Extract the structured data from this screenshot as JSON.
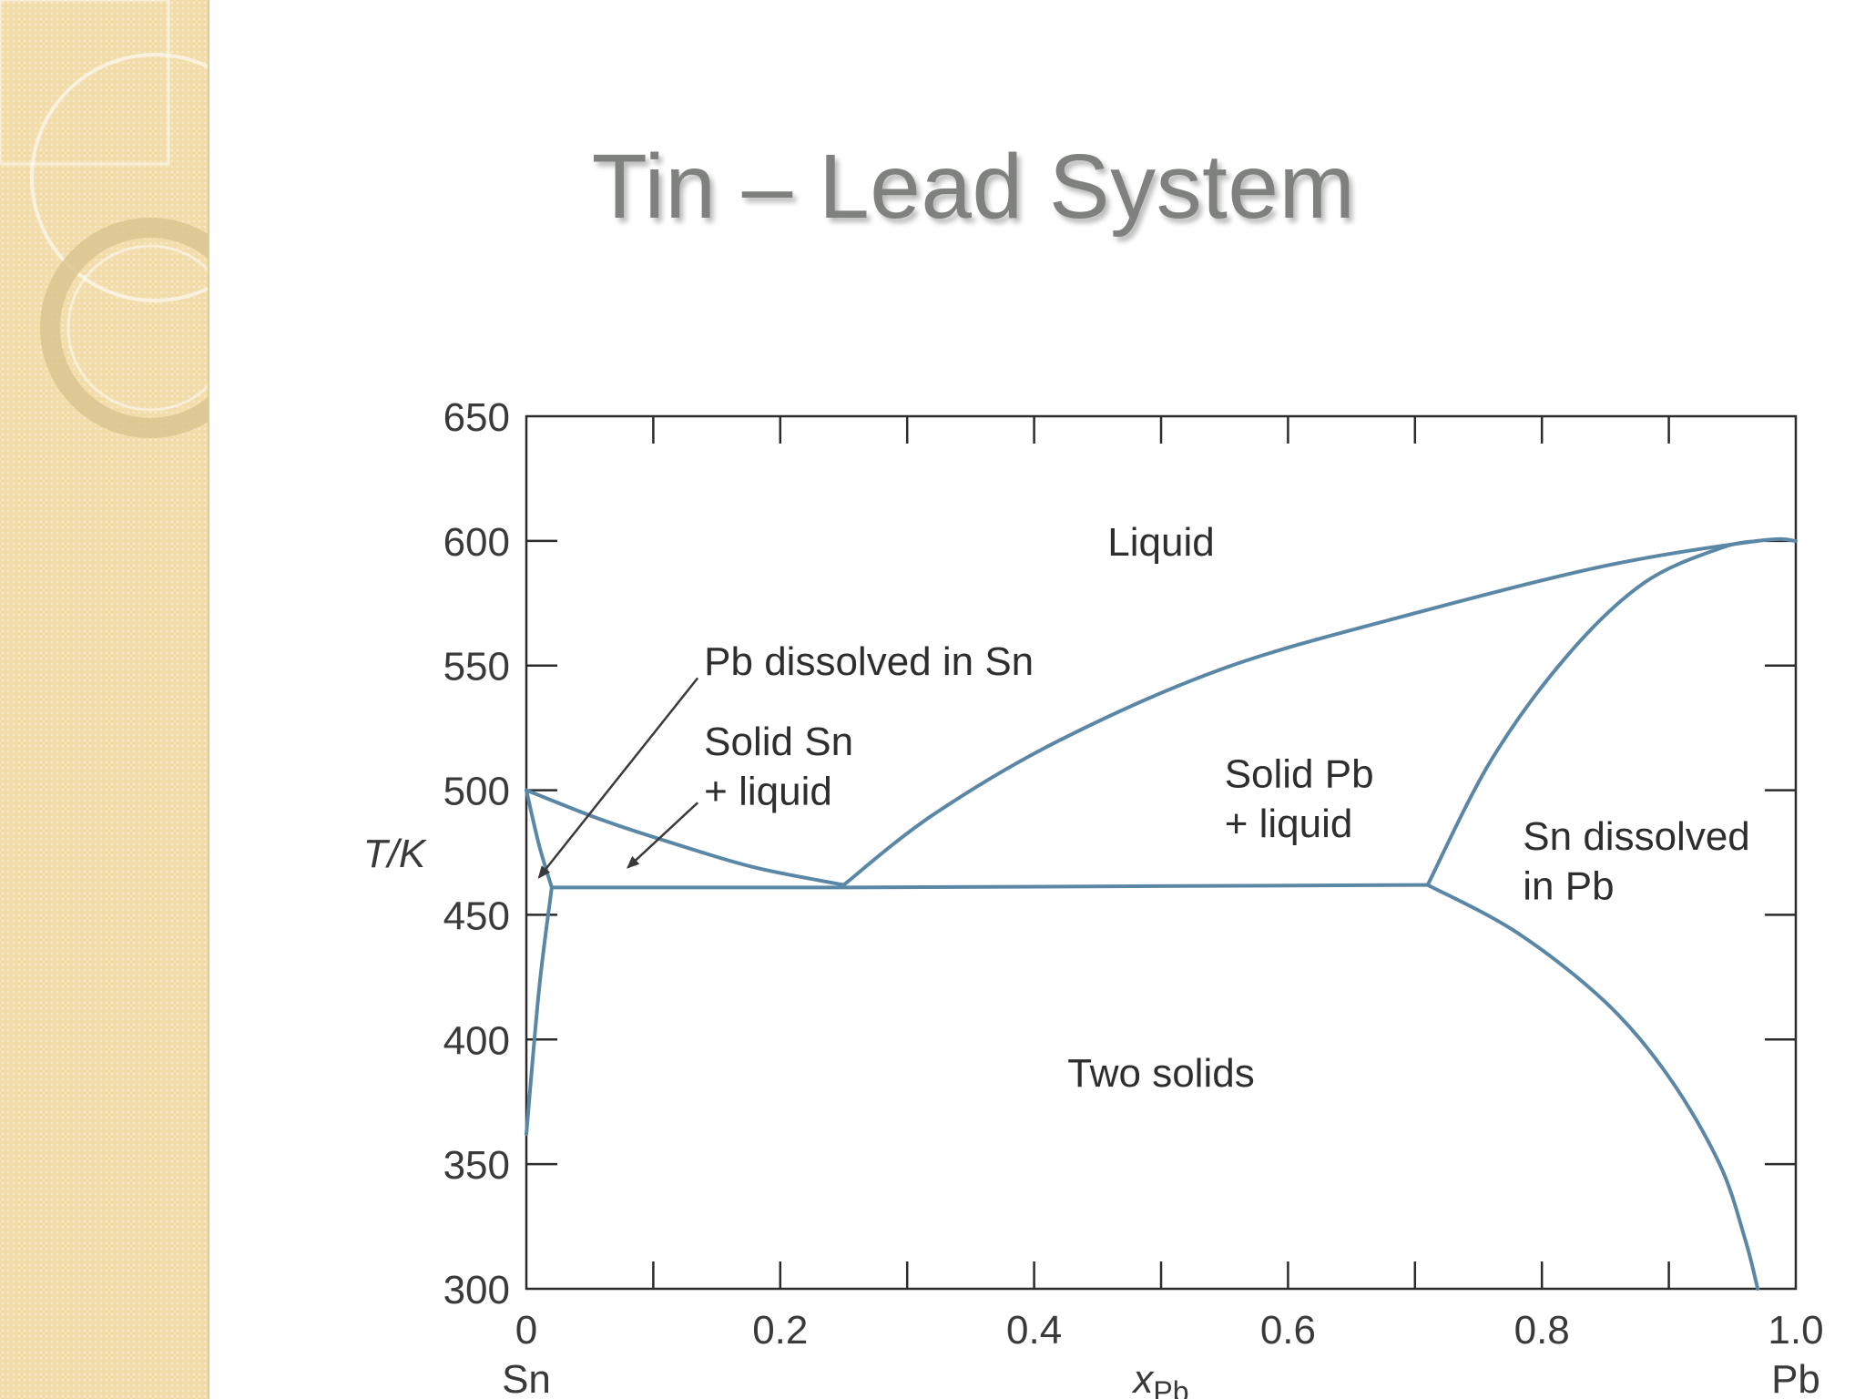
{
  "slide": {
    "title": "Tin – Lead System"
  },
  "colors": {
    "sidebar": "#f1dcaa",
    "curve": "#5a87a6",
    "axis": "#2b2b2b",
    "title": "#7f817e"
  },
  "chart_data": {
    "type": "line",
    "xlabel": "x",
    "xlabel_sub": "Pb",
    "ylabel": "T/K",
    "xlim": [
      0,
      1.0
    ],
    "ylim": [
      300,
      650
    ],
    "x_ticks": [
      {
        "value": 0,
        "label": "0"
      },
      {
        "value": 0.2,
        "label": "0.2"
      },
      {
        "value": 0.4,
        "label": "0.4"
      },
      {
        "value": 0.6,
        "label": "0.6"
      },
      {
        "value": 0.8,
        "label": "0.8"
      },
      {
        "value": 1.0,
        "label": "1.0"
      }
    ],
    "x_minor_ticks": [
      0.1,
      0.3,
      0.5,
      0.7,
      0.9
    ],
    "y_ticks": [
      {
        "value": 300,
        "label": "300"
      },
      {
        "value": 350,
        "label": "350"
      },
      {
        "value": 400,
        "label": "400"
      },
      {
        "value": 450,
        "label": "450"
      },
      {
        "value": 500,
        "label": "500"
      },
      {
        "value": 550,
        "label": "550"
      },
      {
        "value": 600,
        "label": "600"
      },
      {
        "value": 650,
        "label": "650"
      }
    ],
    "x_end_labels": {
      "left": "Sn",
      "right": "Pb"
    },
    "series": [
      {
        "id": "liquidus-sn-side",
        "points": [
          [
            0,
            500
          ],
          [
            0.06,
            488
          ],
          [
            0.12,
            478
          ],
          [
            0.18,
            469
          ],
          [
            0.25,
            462
          ]
        ]
      },
      {
        "id": "liquidus-pb-side",
        "points": [
          [
            0.25,
            462
          ],
          [
            0.32,
            490
          ],
          [
            0.42,
            520
          ],
          [
            0.55,
            549
          ],
          [
            0.7,
            571
          ],
          [
            0.85,
            590
          ],
          [
            0.97,
            600
          ],
          [
            1.0,
            600
          ]
        ]
      },
      {
        "id": "solidus-pb-side",
        "points": [
          [
            0.71,
            462
          ],
          [
            0.76,
            512
          ],
          [
            0.82,
            554
          ],
          [
            0.88,
            583
          ],
          [
            0.94,
            597
          ],
          [
            0.97,
            600
          ]
        ]
      },
      {
        "id": "eutectic-line",
        "points": [
          [
            0.02,
            461
          ],
          [
            0.25,
            461
          ],
          [
            0.71,
            462
          ]
        ]
      },
      {
        "id": "solvus-pb-side",
        "points": [
          [
            0.71,
            462
          ],
          [
            0.78,
            443
          ],
          [
            0.85,
            415
          ],
          [
            0.9,
            385
          ],
          [
            0.94,
            350
          ],
          [
            0.96,
            320
          ],
          [
            0.97,
            300
          ]
        ]
      },
      {
        "id": "solidus-sn-side",
        "points": [
          [
            0,
            500
          ],
          [
            0.01,
            478
          ],
          [
            0.02,
            461
          ]
        ]
      },
      {
        "id": "solvus-sn-side",
        "points": [
          [
            0.02,
            461
          ],
          [
            0.01,
            420
          ],
          [
            0,
            362
          ]
        ]
      }
    ],
    "annotations": [
      {
        "id": "label-liquid",
        "text": "Liquid",
        "x": 0.5,
        "y": 600
      },
      {
        "id": "label-pb-dissolved-in-sn",
        "text": "Pb dissolved in Sn",
        "x": 0.14,
        "y": 552
      },
      {
        "id": "label-solid-sn-liquid-1",
        "text": "Solid Sn",
        "x": 0.14,
        "y": 520
      },
      {
        "id": "label-solid-sn-liquid-2",
        "text": "+ liquid",
        "x": 0.14,
        "y": 500
      },
      {
        "id": "label-solid-pb-liquid-1",
        "text": "Solid Pb",
        "x": 0.55,
        "y": 507
      },
      {
        "id": "label-solid-pb-liquid-2",
        "text": "+ liquid",
        "x": 0.55,
        "y": 487
      },
      {
        "id": "label-sn-dissolved-in-pb-1",
        "text": "Sn dissolved",
        "x": 0.785,
        "y": 482
      },
      {
        "id": "label-sn-dissolved-in-pb-2",
        "text": "in Pb",
        "x": 0.785,
        "y": 462
      },
      {
        "id": "label-two-solids",
        "text": "Two solids",
        "x": 0.5,
        "y": 387
      }
    ],
    "arrows": [
      {
        "id": "arrow-pb-dissolved-in-sn",
        "from": [
          0.135,
          545
        ],
        "to": [
          0.01,
          465
        ]
      },
      {
        "id": "arrow-solid-sn-liquid",
        "from": [
          0.135,
          495
        ],
        "to": [
          0.08,
          469
        ]
      }
    ]
  }
}
